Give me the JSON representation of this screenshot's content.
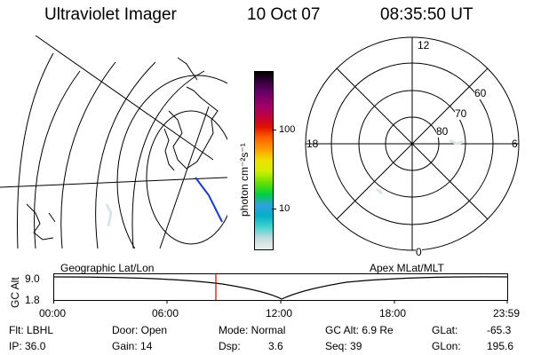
{
  "header": {
    "title": "Ultraviolet Imager",
    "date": "10 Oct 07",
    "time": "08:35:50 UT"
  },
  "colorbar": {
    "unit_label": "photon cm⁻²s⁻¹",
    "ticks": [
      "100",
      "10"
    ],
    "colors": [
      "#e8f0f0",
      "#c8dcdc",
      "#40d0d0",
      "#00b0c8",
      "#30a0e0",
      "#00d040",
      "#70e000",
      "#d0f000",
      "#f0e000",
      "#ffa000",
      "#ff6000",
      "#e01000",
      "#c00040",
      "#a0006a",
      "#6a006a",
      "#3a0040",
      "#000000"
    ]
  },
  "polar_plot": {
    "labels": {
      "top": "12",
      "left": "18",
      "right": "6",
      "bottom": "0",
      "lat60": "60",
      "lat70": "70",
      "lat80": "80"
    }
  },
  "timeline": {
    "left_label": "Geographic Lat/Lon",
    "right_label": "Apex MLat/MLT",
    "y_axis_label": "GC Alt",
    "y_ticks": [
      "9.0",
      "1.8"
    ],
    "x_ticks": [
      "00:00",
      "06:00",
      "12:00",
      "18:00",
      "23:59"
    ],
    "marker_color": "#cc0000"
  },
  "footer": {
    "flt": "Flt: LBHL",
    "ip": "IP: 36.0",
    "door": "Door: Open",
    "gain": "Gain: 14",
    "mode": "Mode: Normal",
    "dsp_label": "Dsp:",
    "dsp_value": "3.6",
    "gc_alt": "GC Alt: 6.9 Re",
    "seq": "Seq: 39",
    "glat_label": "GLat:",
    "glat_value": "-65.3",
    "glon_label": "GLon:",
    "glon_value": "195.6"
  }
}
